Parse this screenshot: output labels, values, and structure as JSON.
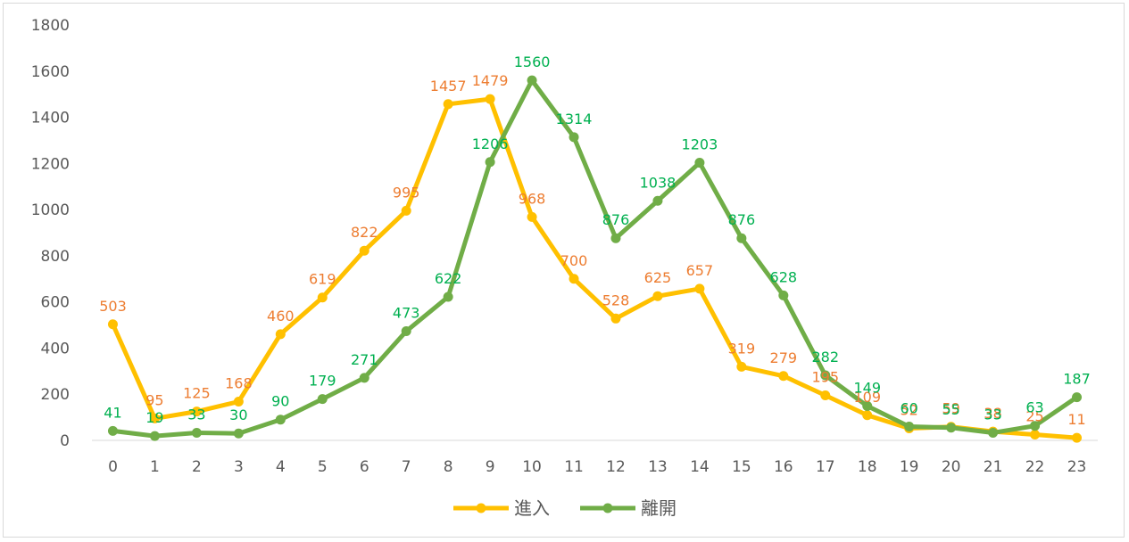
{
  "chart_data": {
    "type": "line",
    "categories": [
      "0",
      "1",
      "2",
      "3",
      "4",
      "5",
      "6",
      "7",
      "8",
      "9",
      "10",
      "11",
      "12",
      "13",
      "14",
      "15",
      "16",
      "17",
      "18",
      "19",
      "20",
      "21",
      "22",
      "23"
    ],
    "series": [
      {
        "name": "進入",
        "color": "#ffc000",
        "label_color": "#ed7d31",
        "values": [
          503,
          95,
          125,
          168,
          460,
          619,
          822,
          995,
          1457,
          1479,
          968,
          700,
          528,
          625,
          657,
          319,
          279,
          195,
          109,
          52,
          59,
          38,
          25,
          11
        ]
      },
      {
        "name": "離開",
        "color": "#70ad47",
        "label_color": "#00b050",
        "values": [
          41,
          19,
          33,
          30,
          90,
          179,
          271,
          473,
          622,
          1206,
          1560,
          1314,
          876,
          1038,
          1203,
          876,
          628,
          282,
          149,
          60,
          55,
          33,
          63,
          187
        ]
      }
    ],
    "ylim": [
      0,
      1800
    ],
    "yticks": [
      "0",
      "200",
      "400",
      "600",
      "800",
      "1000",
      "1200",
      "1400",
      "1600",
      "1800"
    ],
    "grid": false,
    "legend_position": "bottom",
    "title": "",
    "xlabel": "",
    "ylabel": ""
  }
}
